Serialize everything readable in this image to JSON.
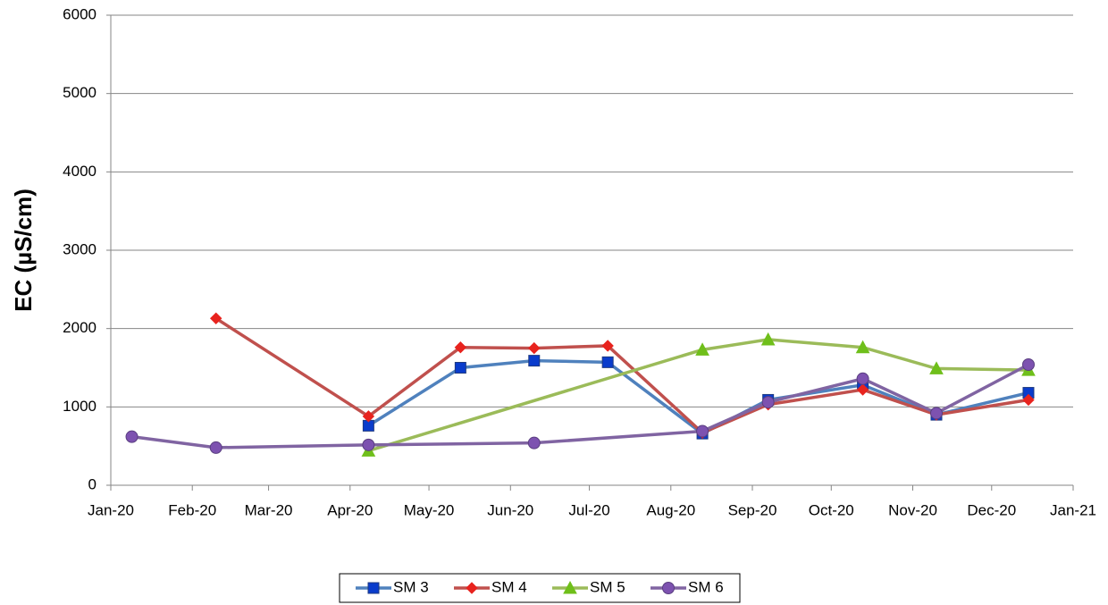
{
  "chart_data": {
    "type": "line",
    "y_label": "EC (µS/cm)",
    "xlim": [
      0,
      366
    ],
    "xticks": [
      {
        "value": 0,
        "label": "Jan-20"
      },
      {
        "value": 31,
        "label": "Feb-20"
      },
      {
        "value": 60,
        "label": "Mar-20"
      },
      {
        "value": 91,
        "label": "Apr-20"
      },
      {
        "value": 121,
        "label": "May-20"
      },
      {
        "value": 152,
        "label": "Jun-20"
      },
      {
        "value": 182,
        "label": "Jul-20"
      },
      {
        "value": 213,
        "label": "Aug-20"
      },
      {
        "value": 244,
        "label": "Sep-20"
      },
      {
        "value": 274,
        "label": "Oct-20"
      },
      {
        "value": 305,
        "label": "Nov-20"
      },
      {
        "value": 335,
        "label": "Dec-20"
      },
      {
        "value": 366,
        "label": "Jan-21"
      }
    ],
    "ylim": [
      0,
      6000
    ],
    "yticks": [
      0,
      1000,
      2000,
      3000,
      4000,
      5000,
      6000
    ],
    "grid": true,
    "legend": "bottom",
    "series": [
      {
        "name": "SM 3",
        "color": "#4f81bd",
        "marker_color": "#0a3ccc",
        "marker": "square",
        "x": [
          98,
          133,
          161,
          189,
          225,
          250,
          286,
          314,
          349
        ],
        "values": [
          760,
          1500,
          1590,
          1570,
          660,
          1090,
          1280,
          900,
          1180
        ]
      },
      {
        "name": "SM 4",
        "color": "#c0504d",
        "marker_color": "#e8231e",
        "marker": "diamond",
        "x": [
          40,
          98,
          133,
          161,
          189,
          225,
          250,
          286,
          314,
          349
        ],
        "values": [
          2130,
          880,
          1760,
          1750,
          1780,
          670,
          1030,
          1220,
          900,
          1090
        ]
      },
      {
        "name": "SM 5",
        "color": "#9bbb59",
        "marker_color": "#6fbf1a",
        "marker": "triangle",
        "x": [
          98,
          225,
          250,
          286,
          314,
          349
        ],
        "values": [
          440,
          1730,
          1860,
          1760,
          1490,
          1470
        ]
      },
      {
        "name": "SM 6",
        "color": "#8064a2",
        "marker_color": "#7d52b0",
        "marker": "circle",
        "x": [
          8,
          40,
          98,
          161,
          225,
          250,
          286,
          314,
          349
        ],
        "values": [
          620,
          480,
          515,
          540,
          690,
          1060,
          1360,
          920,
          1540
        ]
      }
    ]
  }
}
